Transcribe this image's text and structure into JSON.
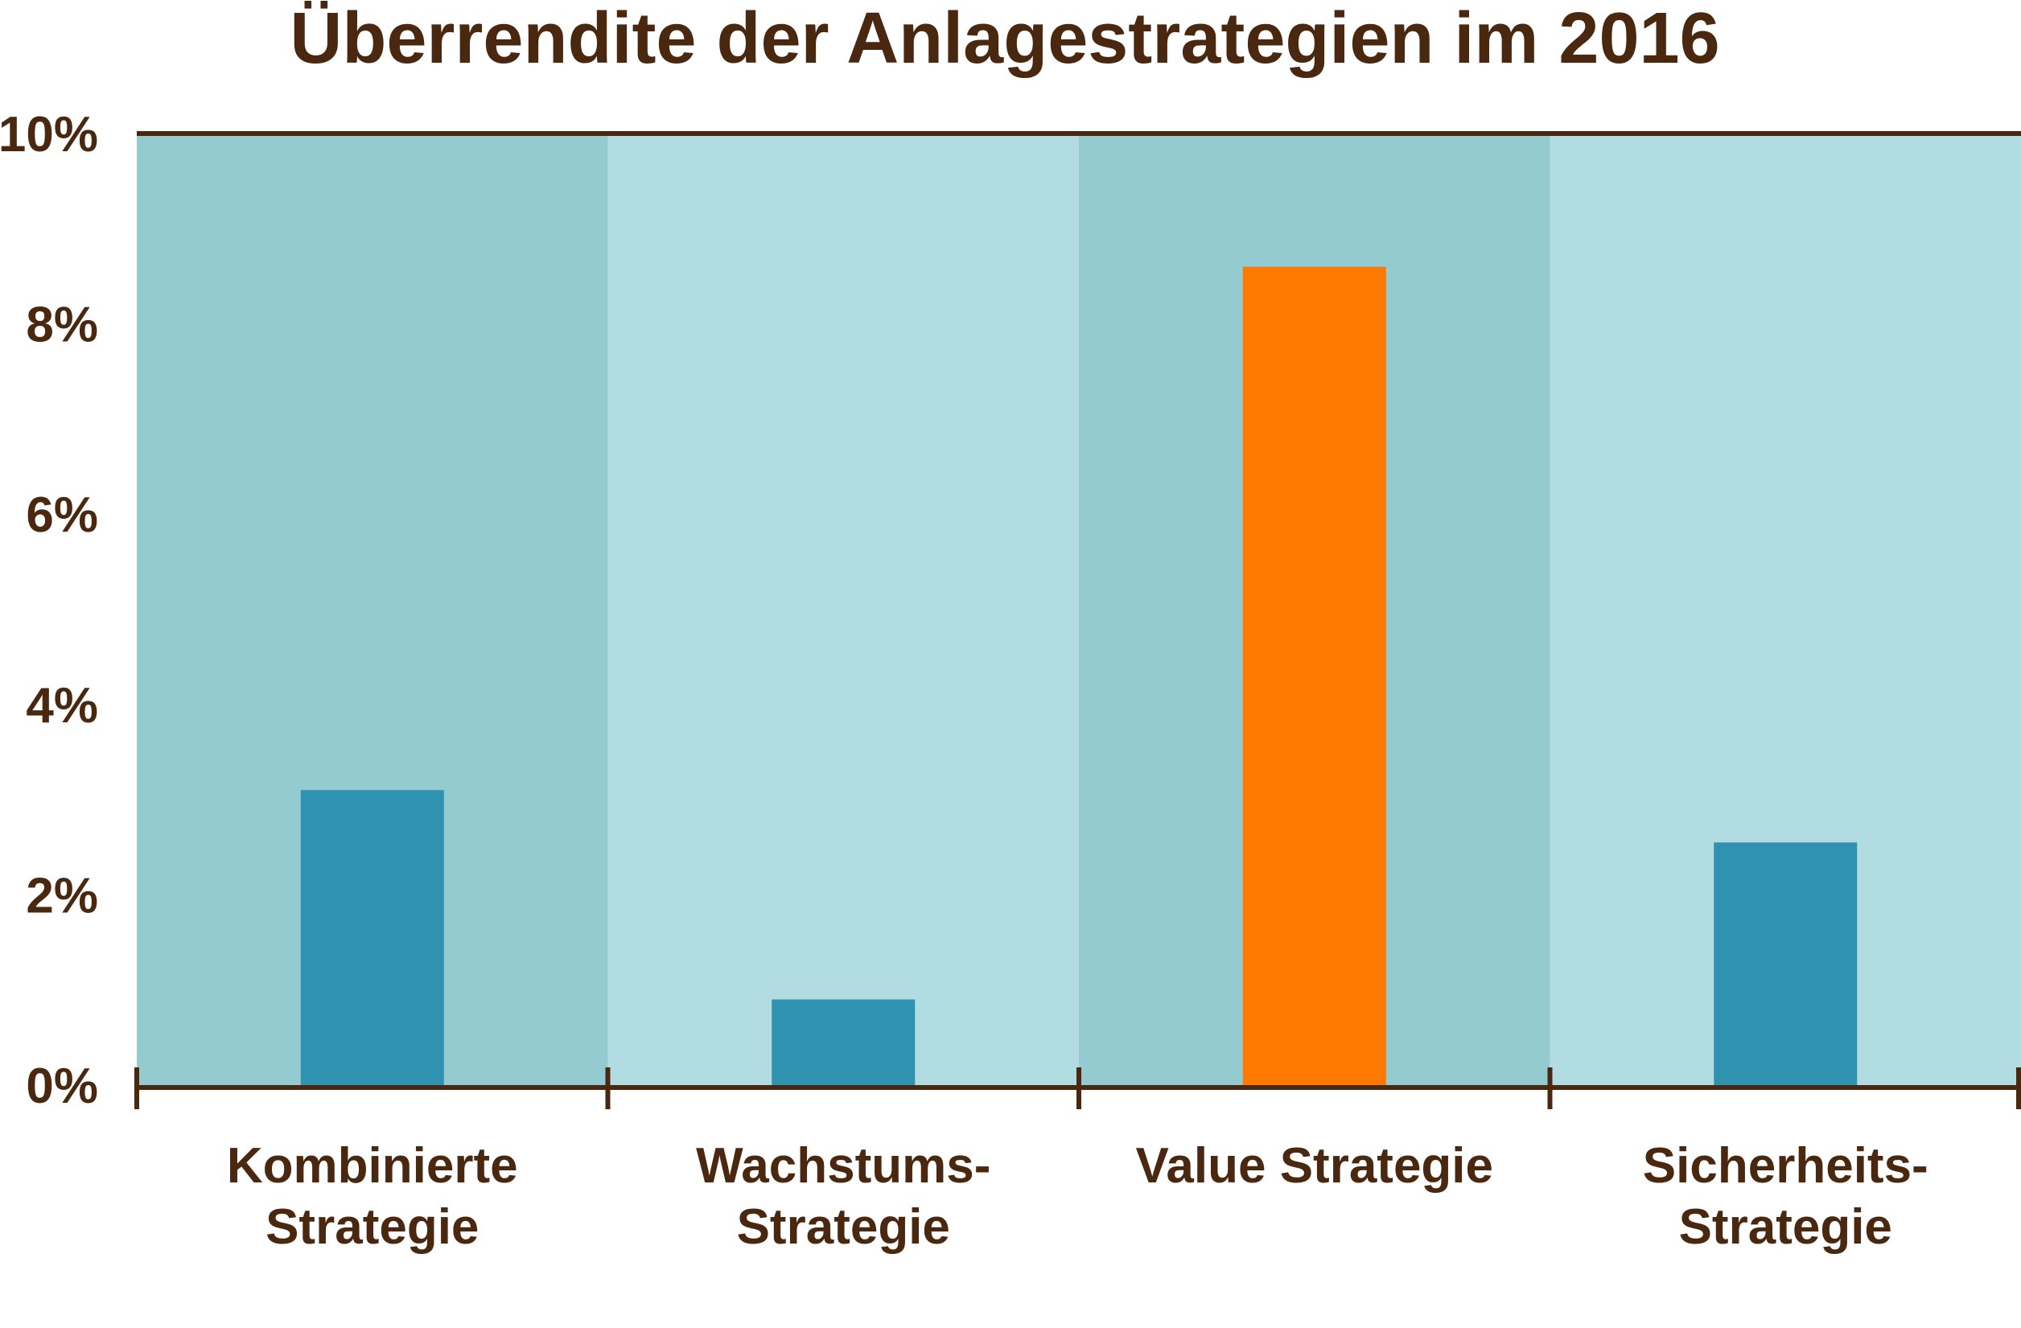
{
  "chart_data": {
    "type": "bar",
    "title": "Überrendite der Anlagestrategien im 2016",
    "xlabel": "",
    "ylabel": "",
    "ylim": [
      0,
      10
    ],
    "yticks": [
      0,
      2,
      4,
      6,
      8,
      10
    ],
    "ytick_labels": [
      "0%",
      "2%",
      "4%",
      "6%",
      "8%",
      "10%"
    ],
    "categories": [
      [
        "Kombinierte",
        "Strategie"
      ],
      [
        "Wachstums-",
        "Strategie"
      ],
      [
        "Value Strategie"
      ],
      [
        "Sicherheits-",
        "Strategie"
      ]
    ],
    "values": [
      3.1,
      0.9,
      8.6,
      2.55
    ],
    "bar_colors": [
      "#2e92b0",
      "#2e92b0",
      "#ff7800",
      "#2e92b0"
    ],
    "band_colors": [
      "#93cbd1",
      "#b1dce2",
      "#93cbd1",
      "#b1dce2"
    ],
    "text_color": "#4a2810",
    "axis_color": "#4a2810",
    "grid": false,
    "legend": "none"
  }
}
